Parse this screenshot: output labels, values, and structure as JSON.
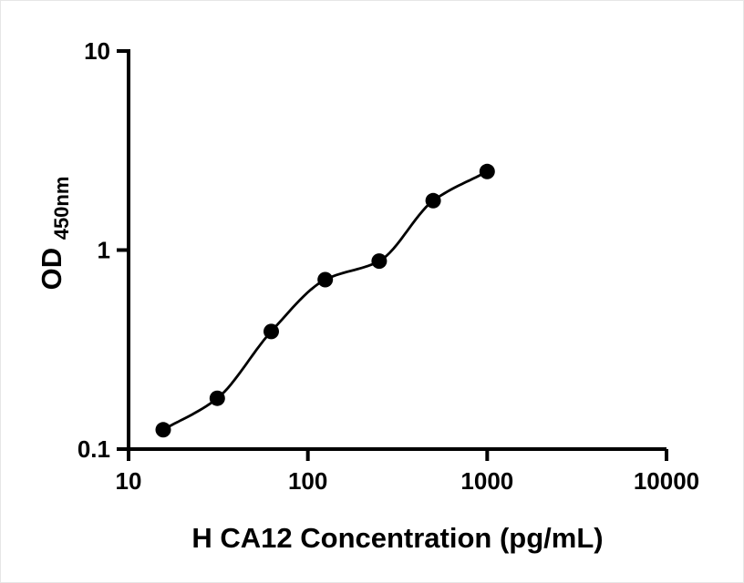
{
  "figure": {
    "background": "#ffffff"
  },
  "chart_data": {
    "type": "scatter",
    "title": "",
    "xlabel": "H CA12 Concentration (pg/mL)",
    "ylabel": "OD",
    "ylabel_subscript": "450nm",
    "x_scale": "log10",
    "y_scale": "log10",
    "xlim": [
      10,
      10000
    ],
    "ylim": [
      0.1,
      10
    ],
    "x_ticks": [
      10,
      100,
      1000,
      10000
    ],
    "x_tick_labels": [
      "10",
      "100",
      "1000",
      "10000"
    ],
    "y_ticks": [
      0.1,
      1,
      10
    ],
    "y_tick_labels": [
      "0.1",
      "1",
      "10"
    ],
    "grid": false,
    "legend": false,
    "axis_color": "#000000",
    "marker_color": "#000000",
    "marker_shape": "circle",
    "curve_color": "#000000",
    "fit_curve": true,
    "points": {
      "x": [
        15.6,
        31.25,
        62.5,
        125,
        250,
        500,
        1000
      ],
      "y": [
        0.125,
        0.18,
        0.39,
        0.71,
        0.88,
        1.77,
        2.48
      ]
    }
  }
}
